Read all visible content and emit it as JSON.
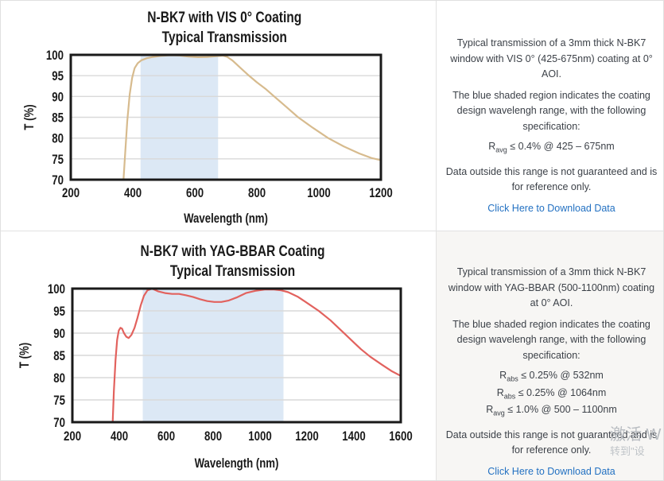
{
  "page": {
    "watermark_line1": "激活 W",
    "watermark_line2": "转到\"设"
  },
  "chart_data": [
    {
      "type": "line",
      "title_line1": "N-BK7 with VIS 0° Coating",
      "title_line2": "Typical Transmission",
      "xlabel": "Wavelength (nm)",
      "ylabel": "T (%)",
      "xlim": [
        200,
        1200
      ],
      "ylim": [
        70,
        100
      ],
      "xticks": [
        200,
        400,
        600,
        800,
        1000,
        1200
      ],
      "yticks": [
        70,
        75,
        80,
        85,
        90,
        95,
        100
      ],
      "grid": "horizontal",
      "shaded_region": [
        425,
        675
      ],
      "shade_color": "#dce8f5",
      "line_color": "#d7bb8e",
      "series": [
        {
          "name": "Typical Transmission",
          "x": [
            370,
            375,
            382,
            390,
            398,
            406,
            416,
            428,
            445,
            465,
            490,
            520,
            550,
            580,
            610,
            640,
            665,
            690,
            705,
            722,
            745,
            770,
            800,
            830,
            856,
            895,
            933,
            980,
            1030,
            1080,
            1130,
            1170,
            1200
          ],
          "y": [
            70,
            76,
            84,
            90.5,
            94.5,
            96.8,
            98,
            98.7,
            99.2,
            99.5,
            99.75,
            99.9,
            99.85,
            99.6,
            99.45,
            99.5,
            99.65,
            99.8,
            99.5,
            98.6,
            97,
            95.3,
            93.4,
            91.7,
            90,
            87.5,
            85,
            82.5,
            80,
            78,
            76.3,
            75.2,
            74.7
          ]
        }
      ]
    },
    {
      "type": "line",
      "title_line1": "N-BK7 with YAG-BBAR Coating",
      "title_line2": "Typical Transmission",
      "xlabel": "Wavelength (nm)",
      "ylabel": "T (%)",
      "xlim": [
        200,
        1600
      ],
      "ylim": [
        70,
        100
      ],
      "xticks": [
        200,
        400,
        600,
        800,
        1000,
        1200,
        1400,
        1600
      ],
      "yticks": [
        70,
        75,
        80,
        85,
        90,
        95,
        100
      ],
      "grid": "horizontal",
      "shaded_region": [
        500,
        1100
      ],
      "shade_color": "#dce8f5",
      "line_color": "#e2625e",
      "series": [
        {
          "name": "Typical Transmission",
          "x": [
            372,
            377,
            384,
            391,
            398,
            405,
            412,
            420,
            430,
            440,
            452,
            465,
            478,
            492,
            505,
            520,
            540,
            565,
            595,
            625,
            655,
            685,
            715,
            745,
            775,
            805,
            835,
            865,
            900,
            940,
            980,
            1020,
            1060,
            1090,
            1120,
            1160,
            1200,
            1250,
            1300,
            1350,
            1400,
            1430,
            1470,
            1520,
            1560,
            1600
          ],
          "y": [
            70,
            77,
            84,
            88.5,
            90.6,
            91.2,
            91,
            90,
            89.2,
            88.9,
            89.6,
            91.2,
            93.5,
            96.3,
            98.4,
            99.6,
            100,
            99.4,
            99,
            98.8,
            98.8,
            98.5,
            98.1,
            97.6,
            97.2,
            97,
            97,
            97.3,
            98,
            99,
            99.5,
            99.8,
            99.8,
            99.6,
            99.2,
            98.2,
            96.8,
            95,
            92.9,
            90.4,
            87.9,
            86.4,
            84.7,
            82.9,
            81.5,
            80.4
          ]
        }
      ]
    }
  ],
  "panels": [
    {
      "p1": "Typical transmission of a 3mm thick N-BK7 window with VIS 0° (425-675nm) coating at 0° AOI.",
      "p2": "The blue shaded region indicates the coating design wavelengh range, with the following specification:",
      "specs": [
        {
          "sym": "R",
          "sub": "avg",
          "text": " ≤ 0.4% @ 425 – 675nm"
        }
      ],
      "p3": "Data outside this range is not guaranteed and is for reference only.",
      "link": "Click Here to Download Data"
    },
    {
      "p1": "Typical transmission of a 3mm thick N-BK7 window with YAG-BBAR (500-1100nm) coating at 0° AOI.",
      "p2": "The blue shaded region indicates the coating design wavelengh range, with the following specification:",
      "specs": [
        {
          "sym": "R",
          "sub": "abs",
          "text": " ≤ 0.25% @ 532nm"
        },
        {
          "sym": "R",
          "sub": "abs",
          "text": " ≤ 0.25% @ 1064nm"
        },
        {
          "sym": "R",
          "sub": "avg",
          "text": " ≤ 1.0% @ 500 – 1100nm"
        }
      ],
      "p3": "Data outside this range is not guaranteed and is for reference only.",
      "link": "Click Here to Download Data"
    }
  ]
}
